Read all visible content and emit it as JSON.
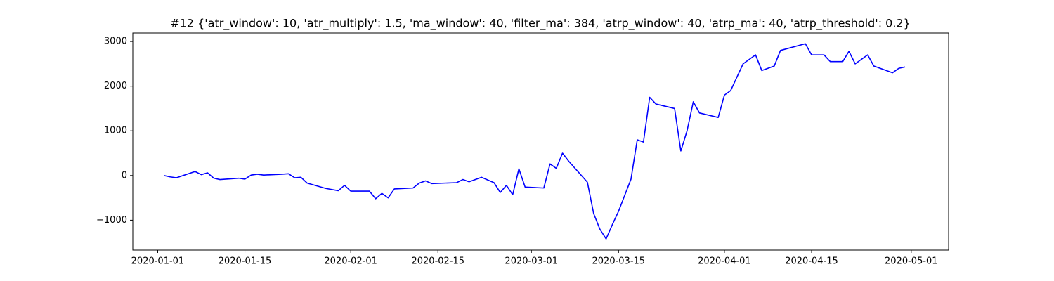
{
  "chart_data": {
    "type": "line",
    "title": "#12 {'atr_window': 10, 'atr_multiply': 1.5, 'ma_window': 40, 'filter_ma': 384, 'atrp_window': 40, 'atrp_ma': 40, 'atrp_threshold': 0.2}",
    "x": [
      "2020-01-02",
      "2020-01-03",
      "2020-01-04",
      "2020-01-07",
      "2020-01-08",
      "2020-01-09",
      "2020-01-10",
      "2020-01-11",
      "2020-01-14",
      "2020-01-15",
      "2020-01-16",
      "2020-01-17",
      "2020-01-18",
      "2020-01-21",
      "2020-01-22",
      "2020-01-23",
      "2020-01-24",
      "2020-01-25",
      "2020-01-28",
      "2020-01-30",
      "2020-01-31",
      "2020-02-01",
      "2020-02-04",
      "2020-02-05",
      "2020-02-06",
      "2020-02-07",
      "2020-02-08",
      "2020-02-11",
      "2020-02-12",
      "2020-02-13",
      "2020-02-14",
      "2020-02-18",
      "2020-02-19",
      "2020-02-20",
      "2020-02-22",
      "2020-02-24",
      "2020-02-25",
      "2020-02-26",
      "2020-02-27",
      "2020-02-28",
      "2020-02-29",
      "2020-03-03",
      "2020-03-04",
      "2020-03-05",
      "2020-03-06",
      "2020-03-07",
      "2020-03-10",
      "2020-03-11",
      "2020-03-12",
      "2020-03-13",
      "2020-03-14",
      "2020-03-15",
      "2020-03-17",
      "2020-03-18",
      "2020-03-19",
      "2020-03-20",
      "2020-03-21",
      "2020-03-24",
      "2020-03-25",
      "2020-03-26",
      "2020-03-27",
      "2020-03-28",
      "2020-03-31",
      "2020-04-01",
      "2020-04-02",
      "2020-04-03",
      "2020-04-04",
      "2020-04-06",
      "2020-04-07",
      "2020-04-09",
      "2020-04-10",
      "2020-04-14",
      "2020-04-15",
      "2020-04-17",
      "2020-04-18",
      "2020-04-20",
      "2020-04-21",
      "2020-04-22",
      "2020-04-24",
      "2020-04-25",
      "2020-04-28",
      "2020-04-29",
      "2020-04-30"
    ],
    "series": [
      {
        "color": "#0000ff",
        "values": [
          0,
          -30,
          -50,
          90,
          20,
          60,
          -60,
          -90,
          -60,
          -80,
          10,
          30,
          10,
          30,
          40,
          -50,
          -40,
          -170,
          -290,
          -340,
          -220,
          -350,
          -350,
          -520,
          -400,
          -500,
          -300,
          -280,
          -170,
          -120,
          -180,
          -160,
          -90,
          -140,
          -40,
          -160,
          -380,
          -220,
          -430,
          150,
          -260,
          -280,
          260,
          160,
          500,
          320,
          -150,
          -850,
          -1200,
          -1420,
          -1100,
          -800,
          -80,
          800,
          750,
          1750,
          1600,
          1500,
          550,
          1000,
          1650,
          1400,
          1300,
          1800,
          1900,
          2200,
          2500,
          2700,
          2350,
          2450,
          2800,
          2950,
          2700,
          2700,
          2550,
          2550,
          2780,
          2500,
          2700,
          2450,
          2300,
          2400,
          2430
        ]
      }
    ],
    "xlim": [
      "2019-12-28",
      "2020-05-07"
    ],
    "xticks": [
      "2020-01-01",
      "2020-01-15",
      "2020-02-01",
      "2020-02-15",
      "2020-03-01",
      "2020-03-15",
      "2020-04-01",
      "2020-04-15",
      "2020-05-01"
    ],
    "ylim": [
      -1670,
      3190
    ],
    "yticks": [
      {
        "value": -1000,
        "label": "−1000"
      },
      0,
      1000,
      2000,
      3000
    ]
  }
}
